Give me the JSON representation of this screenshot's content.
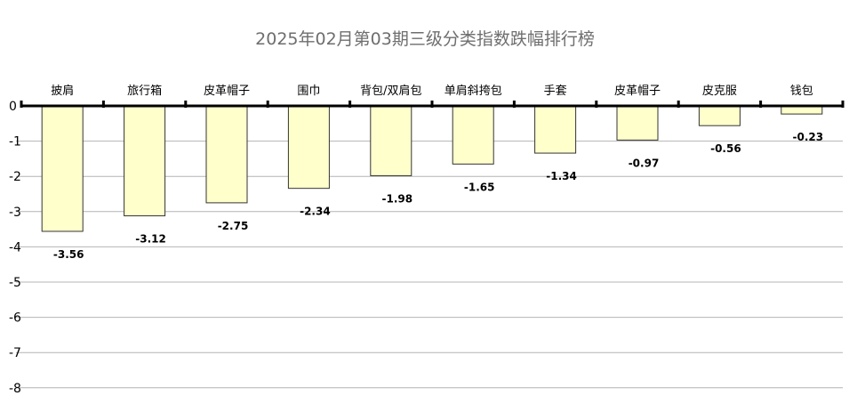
{
  "chart_data": {
    "type": "bar",
    "title": "2025年02月第03期三级分类指数跌幅排行榜",
    "categories": [
      "披肩",
      "旅行箱",
      "皮革帽子",
      "围巾",
      "背包/双肩包",
      "单肩斜挎包",
      "手套",
      "皮革帽子",
      "皮克服",
      "钱包"
    ],
    "values": [
      -3.56,
      -3.12,
      -2.75,
      -2.34,
      -1.98,
      -1.65,
      -1.34,
      -0.97,
      -0.56,
      -0.23
    ],
    "data_labels": [
      "-3.56",
      "-3.12",
      "-2.75",
      "-2.34",
      "-1.98",
      "-1.65",
      "-1.34",
      "-0.97",
      "-0.56",
      "-0.23"
    ],
    "ylim": [
      -8,
      0
    ],
    "yticks": [
      0,
      -1,
      -2,
      -3,
      -4,
      -5,
      -6,
      -7,
      -8
    ],
    "ytick_labels": [
      "0",
      "-1",
      "-2",
      "-3",
      "-4",
      "-5",
      "-6",
      "-7",
      "-8"
    ],
    "xlabel": "",
    "ylabel": "",
    "grid": true,
    "category_axis_position": "top",
    "colors": {
      "bar_fill": "#ffffcc",
      "bar_stroke": "#333333",
      "grid": "#b4b4b4",
      "axis": "#000000",
      "title": "#6e6e6e"
    }
  }
}
